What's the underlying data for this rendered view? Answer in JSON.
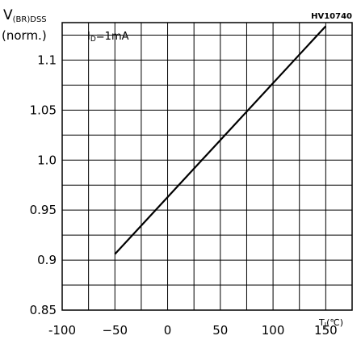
{
  "chart_data": {
    "type": "line",
    "ylabel_main": "V",
    "ylabel_sub": "(BR)DSS",
    "ylabel_norm": "(norm.)",
    "xlabel": "T",
    "xlabel_sub": "J",
    "xlabel_unit": "(℃)",
    "figure_code": "HV10740",
    "annotation_main": "I",
    "annotation_sub": "D",
    "annotation_rest": "=1mA",
    "xlim": [
      -100,
      175
    ],
    "ylim": [
      0.85,
      1.1375
    ],
    "grid": true,
    "x_grid_step": 25,
    "y_grid_step": 0.025,
    "x_ticks": [
      -100,
      -50,
      0,
      50,
      100,
      150
    ],
    "x_tick_labels": [
      "-100",
      "−50",
      "0",
      "50",
      "100",
      "150"
    ],
    "y_ticks": [
      0.85,
      0.9,
      0.95,
      1.0,
      1.05,
      1.1
    ],
    "y_tick_labels": [
      "0.85",
      "0.9",
      "0.95",
      "1.0",
      "1.05",
      "1.1"
    ],
    "series": [
      {
        "x": [
          -50,
          150
        ],
        "y": [
          0.906,
          1.134
        ]
      }
    ]
  }
}
